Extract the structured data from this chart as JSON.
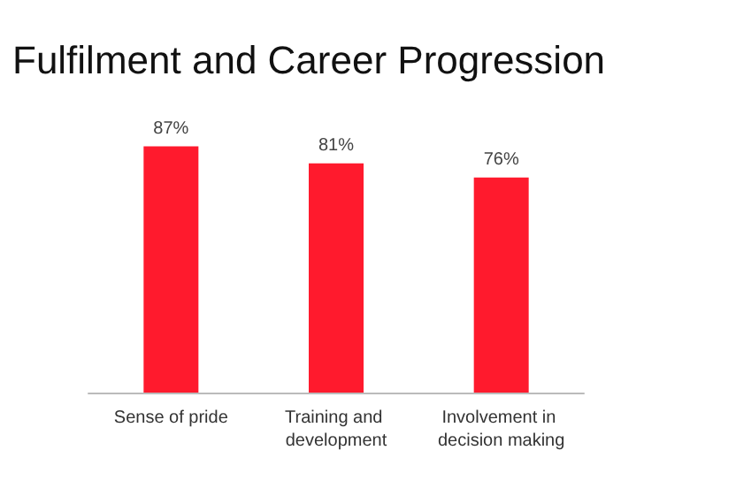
{
  "chart_data": {
    "type": "bar",
    "title": "Fulfilment and Career Progression",
    "categories": [
      "Sense of pride",
      "Training and development",
      "Involvement in decision making"
    ],
    "values": [
      87,
      81,
      76
    ],
    "color": "#ff1a2d",
    "value_labels": [
      "87%",
      "81%",
      "76%"
    ],
    "tick_labels": "x"
  }
}
